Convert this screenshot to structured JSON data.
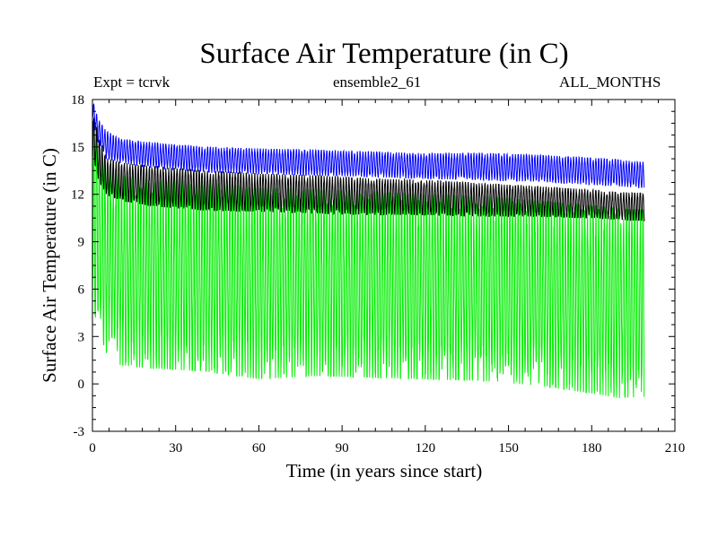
{
  "chart_data": {
    "type": "line",
    "title": "Surface Air Temperature (in C)",
    "subtitle_left": "Expt = tcrvk",
    "subtitle_center": "ensemble2_61",
    "subtitle_right": "ALL_MONTHS",
    "xlabel": "Time (in years since start)",
    "ylabel": "Surface Air Temperature (in C)",
    "xlim": [
      0,
      210
    ],
    "ylim": [
      -3,
      18
    ],
    "xticks": [
      0,
      30,
      60,
      90,
      120,
      150,
      180,
      210
    ],
    "yticks": [
      -3,
      0,
      3,
      6,
      9,
      12,
      15,
      18
    ],
    "grid": false,
    "series": [
      {
        "color": "#00ee00",
        "style": "monthly-oscillating band",
        "x": [
          0,
          2,
          5,
          10,
          20,
          40,
          60,
          80,
          100,
          120,
          140,
          160,
          180,
          190,
          199
        ],
        "upper": [
          17.5,
          15.2,
          14.0,
          13.2,
          13.0,
          12.8,
          12.4,
          12.3,
          12.2,
          12.0,
          11.9,
          11.6,
          11.3,
          11.1,
          11.0
        ],
        "lower": [
          5.0,
          3.5,
          2.0,
          1.2,
          1.0,
          0.8,
          0.3,
          0.5,
          0.4,
          0.3,
          0.2,
          -0.1,
          -0.6,
          -0.9,
          -0.8
        ]
      },
      {
        "color": "#000000",
        "style": "monthly-oscillating band",
        "x": [
          0,
          2,
          5,
          10,
          20,
          40,
          60,
          80,
          100,
          120,
          140,
          160,
          180,
          190,
          199
        ],
        "upper": [
          17.4,
          15.8,
          14.3,
          14.0,
          13.8,
          13.5,
          13.3,
          13.2,
          13.0,
          12.9,
          12.7,
          12.5,
          12.3,
          12.1,
          12.1
        ],
        "lower": [
          14.5,
          13.0,
          12.0,
          11.6,
          11.3,
          11.0,
          10.9,
          10.8,
          10.7,
          10.7,
          10.6,
          10.6,
          10.5,
          10.4,
          10.3
        ]
      },
      {
        "color": "#0000ff",
        "style": "monthly-oscillating band",
        "x": [
          0,
          2,
          5,
          10,
          20,
          40,
          60,
          80,
          100,
          120,
          140,
          160,
          180,
          190,
          199
        ],
        "upper": [
          18.0,
          16.8,
          16.0,
          15.5,
          15.3,
          15.0,
          14.9,
          14.8,
          14.7,
          14.6,
          14.6,
          14.5,
          14.3,
          14.2,
          14.0
        ],
        "lower": [
          16.8,
          15.3,
          14.3,
          14.0,
          13.7,
          13.4,
          13.3,
          13.2,
          13.1,
          13.0,
          12.9,
          12.8,
          12.6,
          12.5,
          12.4
        ]
      }
    ]
  }
}
